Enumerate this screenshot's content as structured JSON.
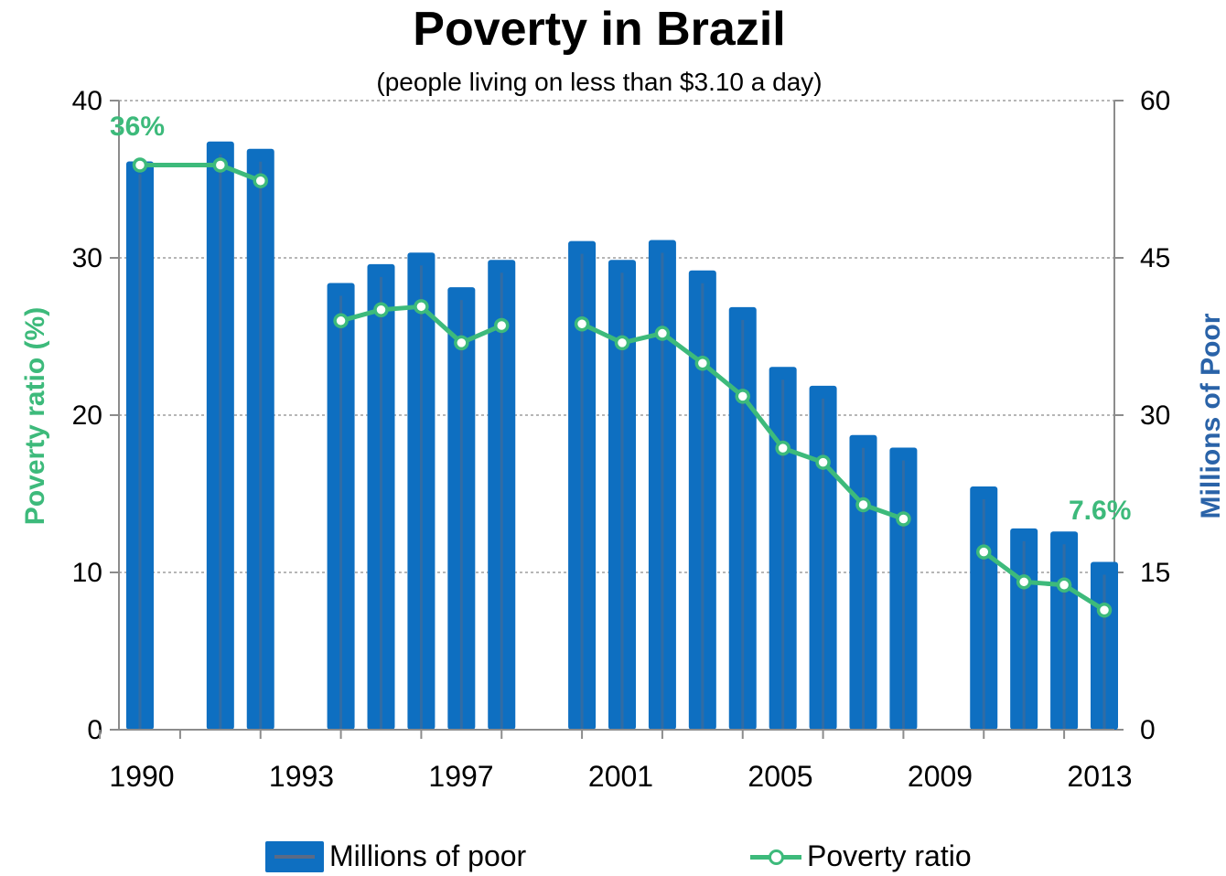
{
  "chart_data": {
    "type": "bar",
    "title": "Poverty in Brazil",
    "subtitle": "(people living on less than $3.10 a day)",
    "ylabel_left": "Poverty ratio (%)",
    "ylabel_right": "Millions of Poor",
    "ylim_left": [
      0,
      40
    ],
    "ylim_right": [
      0,
      60
    ],
    "yticks_left": [
      "0",
      "10",
      "20",
      "30",
      "40"
    ],
    "yticks_right": [
      "0",
      "15",
      "30",
      "45",
      "60"
    ],
    "xlim": [
      1990,
      2013
    ],
    "xticks": [
      "1990",
      "1993",
      "1997",
      "2001",
      "2005",
      "2009",
      "2013"
    ],
    "grid": true,
    "legend_position": "bottom",
    "colors": {
      "bars": "#0e6fc1",
      "line": "#3dba7b",
      "right_axis_label": "#2a63a8"
    },
    "series": [
      {
        "name": "Millions of poor",
        "type": "bar",
        "axis": "right",
        "x": [
          1990,
          1992,
          1993,
          1995,
          1996,
          1997,
          1998,
          1999,
          2001,
          2002,
          2003,
          2004,
          2005,
          2006,
          2007,
          2008,
          2009,
          2011,
          2012,
          2013,
          2014
        ],
        "values": [
          54.2,
          56.1,
          55.4,
          42.6,
          44.4,
          45.5,
          42.2,
          44.8,
          46.6,
          44.8,
          46.7,
          43.8,
          40.3,
          34.6,
          32.8,
          28.1,
          26.9,
          23.2,
          19.2,
          18.9,
          16.0
        ]
      },
      {
        "name": "Poverty ratio",
        "type": "line",
        "axis": "left",
        "x": [
          1990,
          1992,
          1993,
          1995,
          1996,
          1997,
          1998,
          1999,
          2001,
          2002,
          2003,
          2004,
          2005,
          2006,
          2007,
          2008,
          2009,
          2011,
          2012,
          2013,
          2014
        ],
        "values": [
          35.9,
          35.9,
          34.9,
          26.0,
          26.7,
          26.9,
          24.6,
          25.7,
          25.8,
          24.6,
          25.2,
          23.3,
          21.2,
          17.9,
          17.0,
          14.3,
          13.4,
          11.3,
          9.4,
          9.2,
          7.6
        ]
      }
    ],
    "annotations": [
      "36%",
      "7.6%"
    ]
  },
  "legend": {
    "bars_label": "Millions of poor",
    "line_label": "Poverty ratio"
  }
}
